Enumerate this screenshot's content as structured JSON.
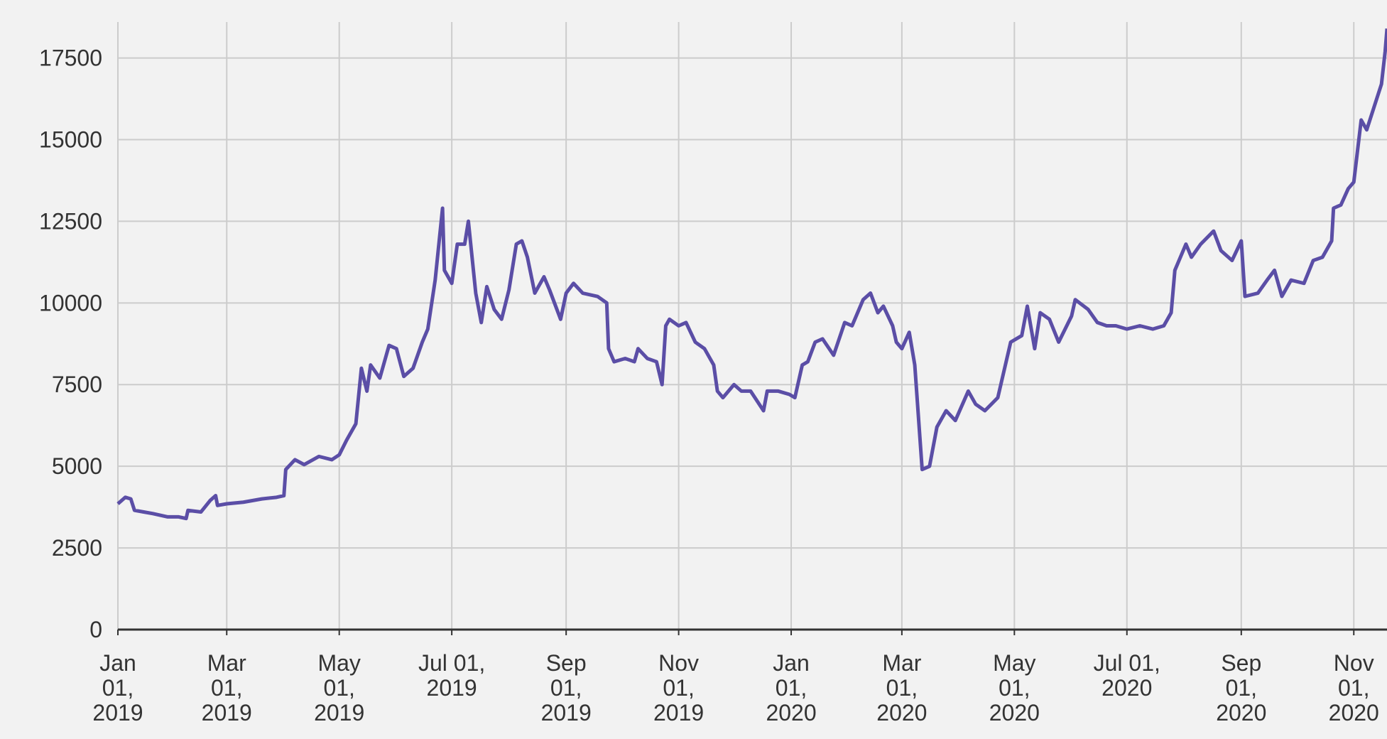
{
  "chart_data": {
    "type": "line",
    "color": "#5b4ea6",
    "grid": true,
    "xlim": [
      "2019-01-01",
      "2020-11-19"
    ],
    "xticks": [
      {
        "value": "2019-01-01",
        "label": "Jan 01, 2019"
      },
      {
        "value": "2019-03-01",
        "label": "Mar 01, 2019"
      },
      {
        "value": "2019-05-01",
        "label": "May 01, 2019"
      },
      {
        "value": "2019-07-01",
        "label": "Jul 01, 2019"
      },
      {
        "value": "2019-09-01",
        "label": "Sep 01, 2019"
      },
      {
        "value": "2019-11-01",
        "label": "Nov 01, 2019"
      },
      {
        "value": "2020-01-01",
        "label": "Jan 01, 2020"
      },
      {
        "value": "2020-03-01",
        "label": "Mar 01, 2020"
      },
      {
        "value": "2020-05-01",
        "label": "May 01, 2020"
      },
      {
        "value": "2020-07-01",
        "label": "Jul 01, 2020"
      },
      {
        "value": "2020-09-01",
        "label": "Sep 01, 2020"
      },
      {
        "value": "2020-11-01",
        "label": "Nov 01, 2020"
      }
    ],
    "ylim": [
      0,
      18600
    ],
    "yticks": [
      0,
      2500,
      5000,
      7500,
      10000,
      12500,
      15000,
      17500
    ],
    "x": [
      "2019-01-01",
      "2019-01-05",
      "2019-01-08",
      "2019-01-10",
      "2019-01-15",
      "2019-01-20",
      "2019-01-28",
      "2019-02-03",
      "2019-02-07",
      "2019-02-08",
      "2019-02-15",
      "2019-02-20",
      "2019-02-23",
      "2019-02-24",
      "2019-03-01",
      "2019-03-10",
      "2019-03-20",
      "2019-03-28",
      "2019-04-01",
      "2019-04-02",
      "2019-04-07",
      "2019-04-12",
      "2019-04-20",
      "2019-04-27",
      "2019-05-01",
      "2019-05-05",
      "2019-05-10",
      "2019-05-13",
      "2019-05-16",
      "2019-05-18",
      "2019-05-23",
      "2019-05-28",
      "2019-06-01",
      "2019-06-05",
      "2019-06-10",
      "2019-06-15",
      "2019-06-18",
      "2019-06-22",
      "2019-06-26",
      "2019-06-27",
      "2019-07-01",
      "2019-07-04",
      "2019-07-08",
      "2019-07-10",
      "2019-07-14",
      "2019-07-17",
      "2019-07-20",
      "2019-07-24",
      "2019-07-28",
      "2019-08-01",
      "2019-08-05",
      "2019-08-08",
      "2019-08-11",
      "2019-08-15",
      "2019-08-20",
      "2019-08-23",
      "2019-08-29",
      "2019-09-01",
      "2019-09-05",
      "2019-09-10",
      "2019-09-18",
      "2019-09-23",
      "2019-09-24",
      "2019-09-27",
      "2019-10-03",
      "2019-10-08",
      "2019-10-10",
      "2019-10-15",
      "2019-10-20",
      "2019-10-23",
      "2019-10-25",
      "2019-10-27",
      "2019-11-01",
      "2019-11-05",
      "2019-11-10",
      "2019-11-15",
      "2019-11-20",
      "2019-11-22",
      "2019-11-25",
      "2019-12-01",
      "2019-12-05",
      "2019-12-10",
      "2019-12-17",
      "2019-12-19",
      "2019-12-25",
      "2019-12-31",
      "2020-01-03",
      "2020-01-07",
      "2020-01-10",
      "2020-01-14",
      "2020-01-18",
      "2020-01-24",
      "2020-01-30",
      "2020-02-03",
      "2020-02-09",
      "2020-02-13",
      "2020-02-17",
      "2020-02-20",
      "2020-02-25",
      "2020-02-27",
      "2020-03-01",
      "2020-03-05",
      "2020-03-08",
      "2020-03-12",
      "2020-03-16",
      "2020-03-20",
      "2020-03-25",
      "2020-03-30",
      "2020-04-06",
      "2020-04-10",
      "2020-04-15",
      "2020-04-22",
      "2020-04-29",
      "2020-05-05",
      "2020-05-08",
      "2020-05-12",
      "2020-05-15",
      "2020-05-20",
      "2020-05-25",
      "2020-06-01",
      "2020-06-03",
      "2020-06-10",
      "2020-06-15",
      "2020-06-20",
      "2020-06-25",
      "2020-07-01",
      "2020-07-08",
      "2020-07-15",
      "2020-07-21",
      "2020-07-25",
      "2020-07-27",
      "2020-08-02",
      "2020-08-05",
      "2020-08-10",
      "2020-08-17",
      "2020-08-21",
      "2020-08-27",
      "2020-09-01",
      "2020-09-03",
      "2020-09-10",
      "2020-09-15",
      "2020-09-19",
      "2020-09-23",
      "2020-09-28",
      "2020-10-05",
      "2020-10-10",
      "2020-10-15",
      "2020-10-20",
      "2020-10-21",
      "2020-10-25",
      "2020-10-29",
      "2020-11-01",
      "2020-11-05",
      "2020-11-08",
      "2020-11-12",
      "2020-11-16",
      "2020-11-18",
      "2020-11-19"
    ],
    "values": [
      3850,
      4050,
      4000,
      3650,
      3600,
      3550,
      3450,
      3450,
      3400,
      3650,
      3600,
      3950,
      4100,
      3800,
      3850,
      3900,
      4000,
      4050,
      4100,
      4900,
      5200,
      5050,
      5300,
      5200,
      5350,
      5800,
      6300,
      8000,
      7300,
      8100,
      7700,
      8700,
      8600,
      7750,
      8000,
      8800,
      9200,
      10700,
      12900,
      11000,
      10600,
      11800,
      11800,
      12500,
      10300,
      9400,
      10500,
      9800,
      9500,
      10400,
      11800,
      11900,
      11400,
      10300,
      10800,
      10400,
      9500,
      10300,
      10600,
      10300,
      10200,
      10000,
      8600,
      8200,
      8300,
      8200,
      8600,
      8300,
      8200,
      7500,
      9300,
      9500,
      9300,
      9400,
      8800,
      8600,
      8100,
      7300,
      7100,
      7500,
      7300,
      7300,
      6700,
      7300,
      7300,
      7200,
      7100,
      8100,
      8200,
      8800,
      8900,
      8400,
      9400,
      9300,
      10100,
      10300,
      9700,
      9900,
      9300,
      8800,
      8600,
      9100,
      8100,
      4900,
      5000,
      6200,
      6700,
      6400,
      7300,
      6900,
      6700,
      7100,
      8800,
      9000,
      9900,
      8600,
      9700,
      9500,
      8800,
      9600,
      10100,
      9800,
      9400,
      9300,
      9300,
      9200,
      9300,
      9200,
      9300,
      9700,
      11000,
      11800,
      11400,
      11800,
      12200,
      11600,
      11300,
      11900,
      10200,
      10300,
      10700,
      11000,
      10200,
      10700,
      10600,
      11300,
      11400,
      11900,
      12900,
      13000,
      13500,
      13700,
      15600,
      15300,
      16000,
      16700,
      17700,
      18400
    ]
  }
}
